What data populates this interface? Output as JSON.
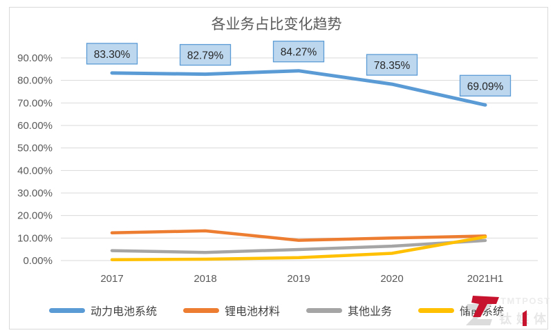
{
  "chart_data": {
    "type": "line",
    "title": "各业务占比变化趋势",
    "categories": [
      "2017",
      "2018",
      "2019",
      "2020",
      "2021H1"
    ],
    "series": [
      {
        "name": "动力电池系统",
        "color": "#5B9BD5",
        "values": [
          83.3,
          82.79,
          84.27,
          78.35,
          69.09
        ],
        "data_labels": [
          "83.30%",
          "82.79%",
          "84.27%",
          "78.35%",
          "69.09%"
        ]
      },
      {
        "name": "锂电池材料",
        "color": "#ED7D31",
        "values": [
          12.3,
          13.2,
          9.0,
          10.0,
          10.9
        ]
      },
      {
        "name": "其他业务",
        "color": "#A5A5A5",
        "values": [
          4.4,
          3.6,
          4.9,
          6.4,
          8.9
        ]
      },
      {
        "name": "储能系统",
        "color": "#FFC000",
        "values": [
          0.4,
          0.6,
          1.3,
          3.2,
          10.5
        ]
      }
    ],
    "y_axis": {
      "min": 0,
      "max": 90,
      "step": 10,
      "tick_labels": [
        "0.00%",
        "10.00%",
        "20.00%",
        "30.00%",
        "40.00%",
        "50.00%",
        "60.00%",
        "70.00%",
        "80.00%",
        "90.00%"
      ]
    },
    "x_axis": {
      "tick_labels": [
        "2017",
        "2018",
        "2019",
        "2020",
        "2021H1"
      ]
    },
    "legend_position": "bottom",
    "grid": "horizontal",
    "styles": {
      "gridline_color": "#D9D9D9",
      "tick_label_color": "#595959",
      "data_label_box_fill": "#BDD7EE",
      "data_label_box_border": "#5B9BD5",
      "data_label_text_color": "#262626"
    }
  },
  "watermark": {
    "text_top": "TMTPOST",
    "text_bottom": "钛媒体",
    "red": "#C7132E",
    "light_gray": "#E9E9E9"
  }
}
